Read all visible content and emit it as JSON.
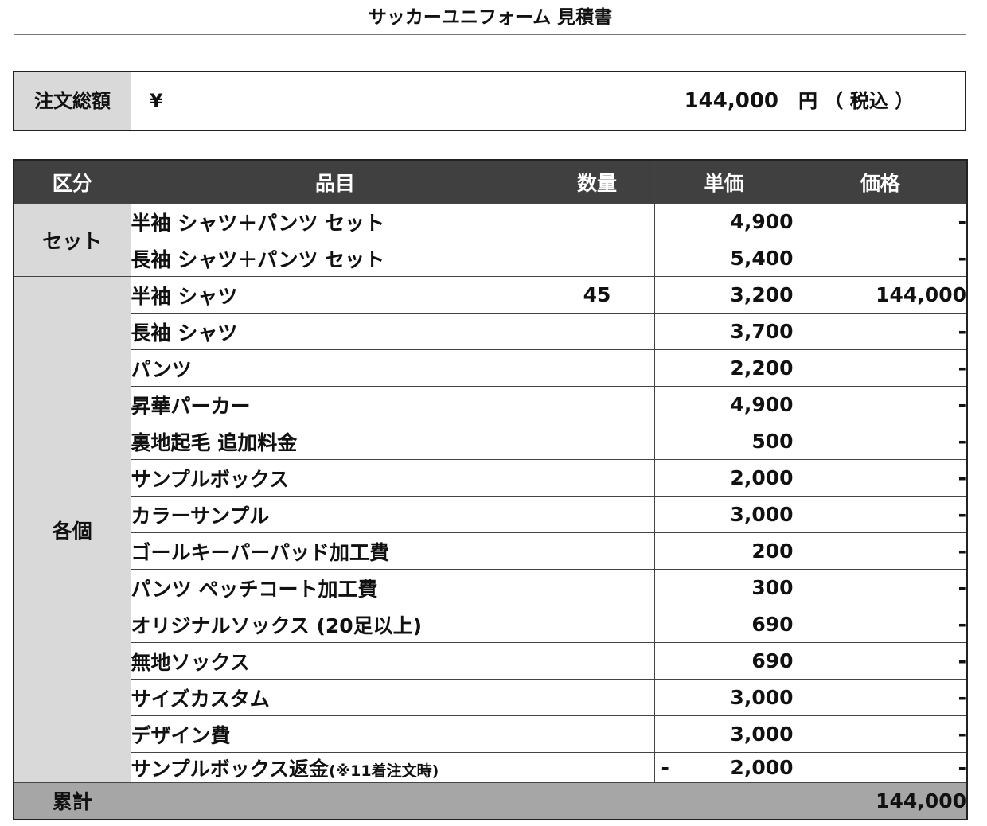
{
  "title": "サッカーユニフォーム 見積書",
  "total": {
    "label": "注文総額",
    "currency": "¥",
    "amount": "144,000",
    "unit": "円 （ 税込 ）"
  },
  "headers": {
    "category": "区分",
    "item": "品目",
    "qty": "数量",
    "unit_price": "単価",
    "price": "価格"
  },
  "groups": {
    "set": "セット",
    "individual": "各個"
  },
  "rows": [
    {
      "item": "半袖 シャツ＋パンツ セット",
      "note": "",
      "qty": "",
      "unit_price": "4,900",
      "price": "-"
    },
    {
      "item": "長袖 シャツ＋パンツ セット",
      "note": "",
      "qty": "",
      "unit_price": "5,400",
      "price": "-"
    },
    {
      "item": "半袖 シャツ",
      "note": "",
      "qty": "45",
      "unit_price": "3,200",
      "price": "144,000"
    },
    {
      "item": "長袖 シャツ",
      "note": "",
      "qty": "",
      "unit_price": "3,700",
      "price": "-"
    },
    {
      "item": "パンツ",
      "note": "",
      "qty": "",
      "unit_price": "2,200",
      "price": "-"
    },
    {
      "item": "昇華パーカー",
      "note": "",
      "qty": "",
      "unit_price": "4,900",
      "price": "-"
    },
    {
      "item": "裏地起毛 追加料金",
      "note": "",
      "qty": "",
      "unit_price": "500",
      "price": "-"
    },
    {
      "item": "サンプルボックス",
      "note": "",
      "qty": "",
      "unit_price": "2,000",
      "price": "-"
    },
    {
      "item": "カラーサンプル",
      "note": "",
      "qty": "",
      "unit_price": "3,000",
      "price": "-"
    },
    {
      "item": "ゴールキーパーパッド加工費",
      "note": "",
      "qty": "",
      "unit_price": "200",
      "price": "-"
    },
    {
      "item": "パンツ ペッチコート加工費",
      "note": "",
      "qty": "",
      "unit_price": "300",
      "price": "-"
    },
    {
      "item": "オリジナルソックス (20足以上)",
      "note": "",
      "qty": "",
      "unit_price": "690",
      "price": "-"
    },
    {
      "item": "無地ソックス",
      "note": "",
      "qty": "",
      "unit_price": "690",
      "price": "-"
    },
    {
      "item": "サイズカスタム",
      "note": "",
      "qty": "",
      "unit_price": "3,000",
      "price": "-"
    },
    {
      "item": "デザイン費",
      "note": "",
      "qty": "",
      "unit_price": "3,000",
      "price": "-"
    },
    {
      "item": "サンプルボックス返金",
      "note": "(※11着注文時)",
      "qty": "",
      "neg": "-",
      "unit_price": "2,000",
      "price": "-"
    }
  ],
  "summary": {
    "label": "累計",
    "total": "144,000"
  }
}
